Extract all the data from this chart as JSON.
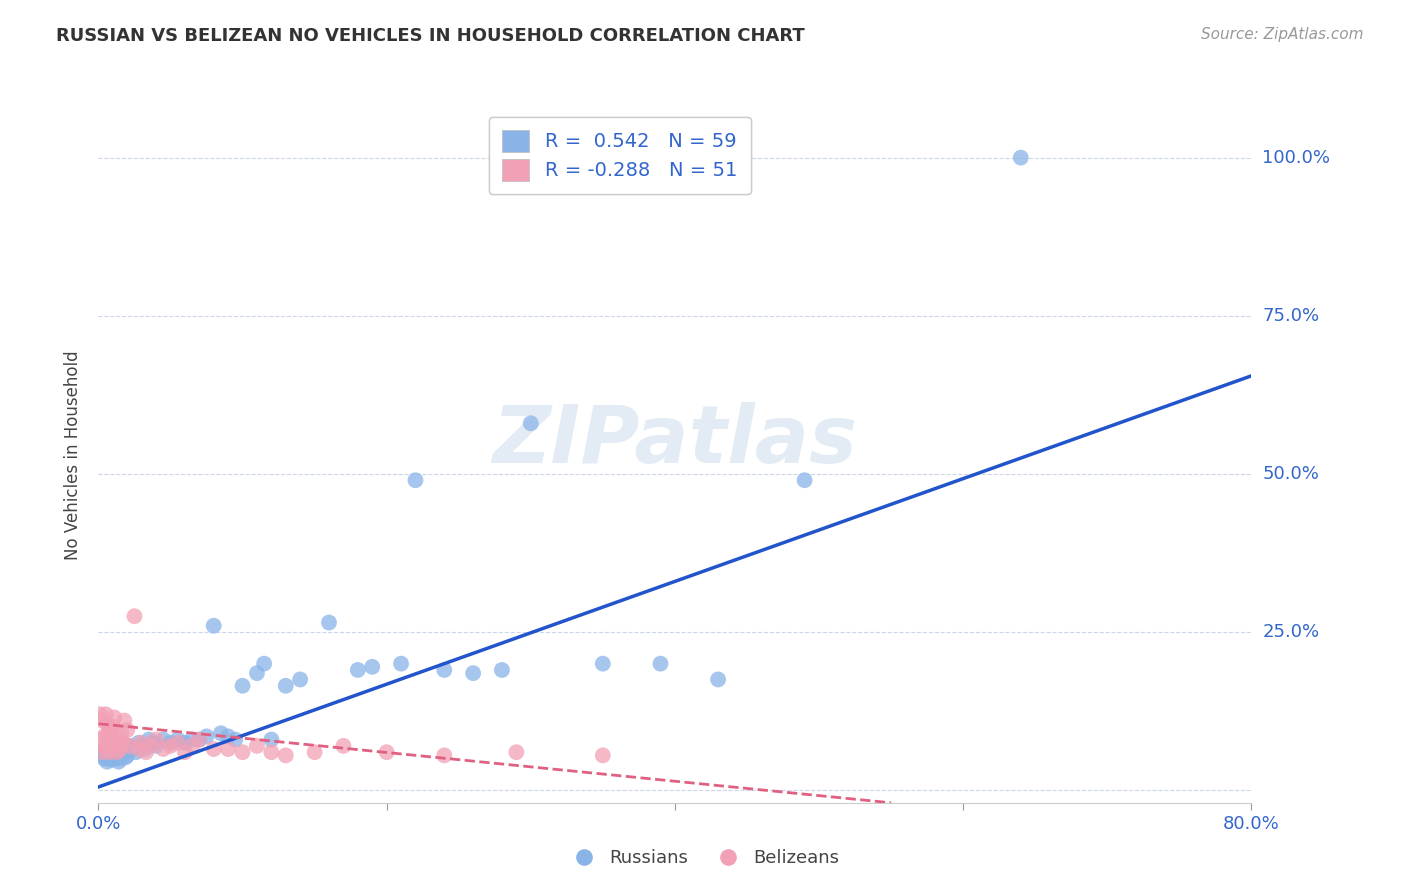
{
  "title": "RUSSIAN VS BELIZEAN NO VEHICLES IN HOUSEHOLD CORRELATION CHART",
  "source": "Source: ZipAtlas.com",
  "ylabel": "No Vehicles in Household",
  "xlim": [
    0.0,
    0.8
  ],
  "ylim": [
    -0.02,
    1.08
  ],
  "xticks": [
    0.0,
    0.2,
    0.4,
    0.6,
    0.8
  ],
  "yticks": [
    0.0,
    0.25,
    0.5,
    0.75,
    1.0
  ],
  "xticklabels": [
    "0.0%",
    "",
    "",
    "",
    "80.0%"
  ],
  "yticklabels": [
    "",
    "25.0%",
    "50.0%",
    "75.0%",
    "100.0%"
  ],
  "russian_color": "#8AB4E8",
  "belizean_color": "#F2A0B5",
  "russian_line_color": "#2255CC",
  "belizean_line_color": "#E06080",
  "background_color": "#FFFFFF",
  "watermark": "ZIPatlas",
  "legend_R_russian": "0.542",
  "legend_N_russian": "59",
  "legend_R_belizean": "-0.288",
  "legend_N_belizean": "51",
  "russian_x": [
    0.002,
    0.003,
    0.004,
    0.005,
    0.006,
    0.007,
    0.008,
    0.009,
    0.01,
    0.011,
    0.012,
    0.013,
    0.014,
    0.015,
    0.016,
    0.017,
    0.018,
    0.019,
    0.02,
    0.022,
    0.024,
    0.026,
    0.028,
    0.03,
    0.032,
    0.035,
    0.038,
    0.04,
    0.045,
    0.05,
    0.055,
    0.06,
    0.065,
    0.07,
    0.075,
    0.08,
    0.085,
    0.09,
    0.095,
    0.1,
    0.11,
    0.115,
    0.12,
    0.13,
    0.14,
    0.16,
    0.18,
    0.19,
    0.21,
    0.22,
    0.24,
    0.26,
    0.28,
    0.3,
    0.35,
    0.39,
    0.43,
    0.49,
    0.64
  ],
  "russian_y": [
    0.06,
    0.055,
    0.05,
    0.065,
    0.045,
    0.05,
    0.055,
    0.048,
    0.052,
    0.058,
    0.06,
    0.05,
    0.045,
    0.055,
    0.05,
    0.058,
    0.06,
    0.052,
    0.055,
    0.07,
    0.065,
    0.06,
    0.075,
    0.07,
    0.065,
    0.08,
    0.075,
    0.07,
    0.08,
    0.075,
    0.08,
    0.075,
    0.08,
    0.08,
    0.085,
    0.26,
    0.09,
    0.085,
    0.08,
    0.165,
    0.185,
    0.2,
    0.08,
    0.165,
    0.175,
    0.265,
    0.19,
    0.195,
    0.2,
    0.49,
    0.19,
    0.185,
    0.19,
    0.58,
    0.2,
    0.2,
    0.175,
    0.49,
    1.0
  ],
  "belizean_x": [
    0.001,
    0.002,
    0.003,
    0.003,
    0.004,
    0.005,
    0.005,
    0.006,
    0.006,
    0.007,
    0.007,
    0.008,
    0.008,
    0.009,
    0.01,
    0.01,
    0.011,
    0.011,
    0.012,
    0.013,
    0.014,
    0.015,
    0.016,
    0.017,
    0.018,
    0.02,
    0.022,
    0.025,
    0.028,
    0.03,
    0.033,
    0.036,
    0.04,
    0.045,
    0.05,
    0.055,
    0.06,
    0.065,
    0.07,
    0.08,
    0.09,
    0.1,
    0.11,
    0.12,
    0.13,
    0.15,
    0.17,
    0.2,
    0.24,
    0.29,
    0.35
  ],
  "belizean_y": [
    0.12,
    0.08,
    0.06,
    0.11,
    0.085,
    0.07,
    0.12,
    0.065,
    0.105,
    0.075,
    0.09,
    0.06,
    0.095,
    0.07,
    0.08,
    0.1,
    0.07,
    0.115,
    0.075,
    0.06,
    0.08,
    0.065,
    0.09,
    0.075,
    0.11,
    0.095,
    0.07,
    0.275,
    0.065,
    0.075,
    0.06,
    0.07,
    0.08,
    0.065,
    0.07,
    0.075,
    0.06,
    0.07,
    0.08,
    0.065,
    0.065,
    0.06,
    0.07,
    0.06,
    0.055,
    0.06,
    0.07,
    0.06,
    0.055,
    0.06,
    0.055
  ],
  "russian_trendline_x": [
    0.0,
    0.8
  ],
  "russian_trendline_y": [
    0.005,
    0.655
  ],
  "belizean_trendline_x": [
    0.0,
    0.55
  ],
  "belizean_trendline_y": [
    0.105,
    -0.02
  ]
}
